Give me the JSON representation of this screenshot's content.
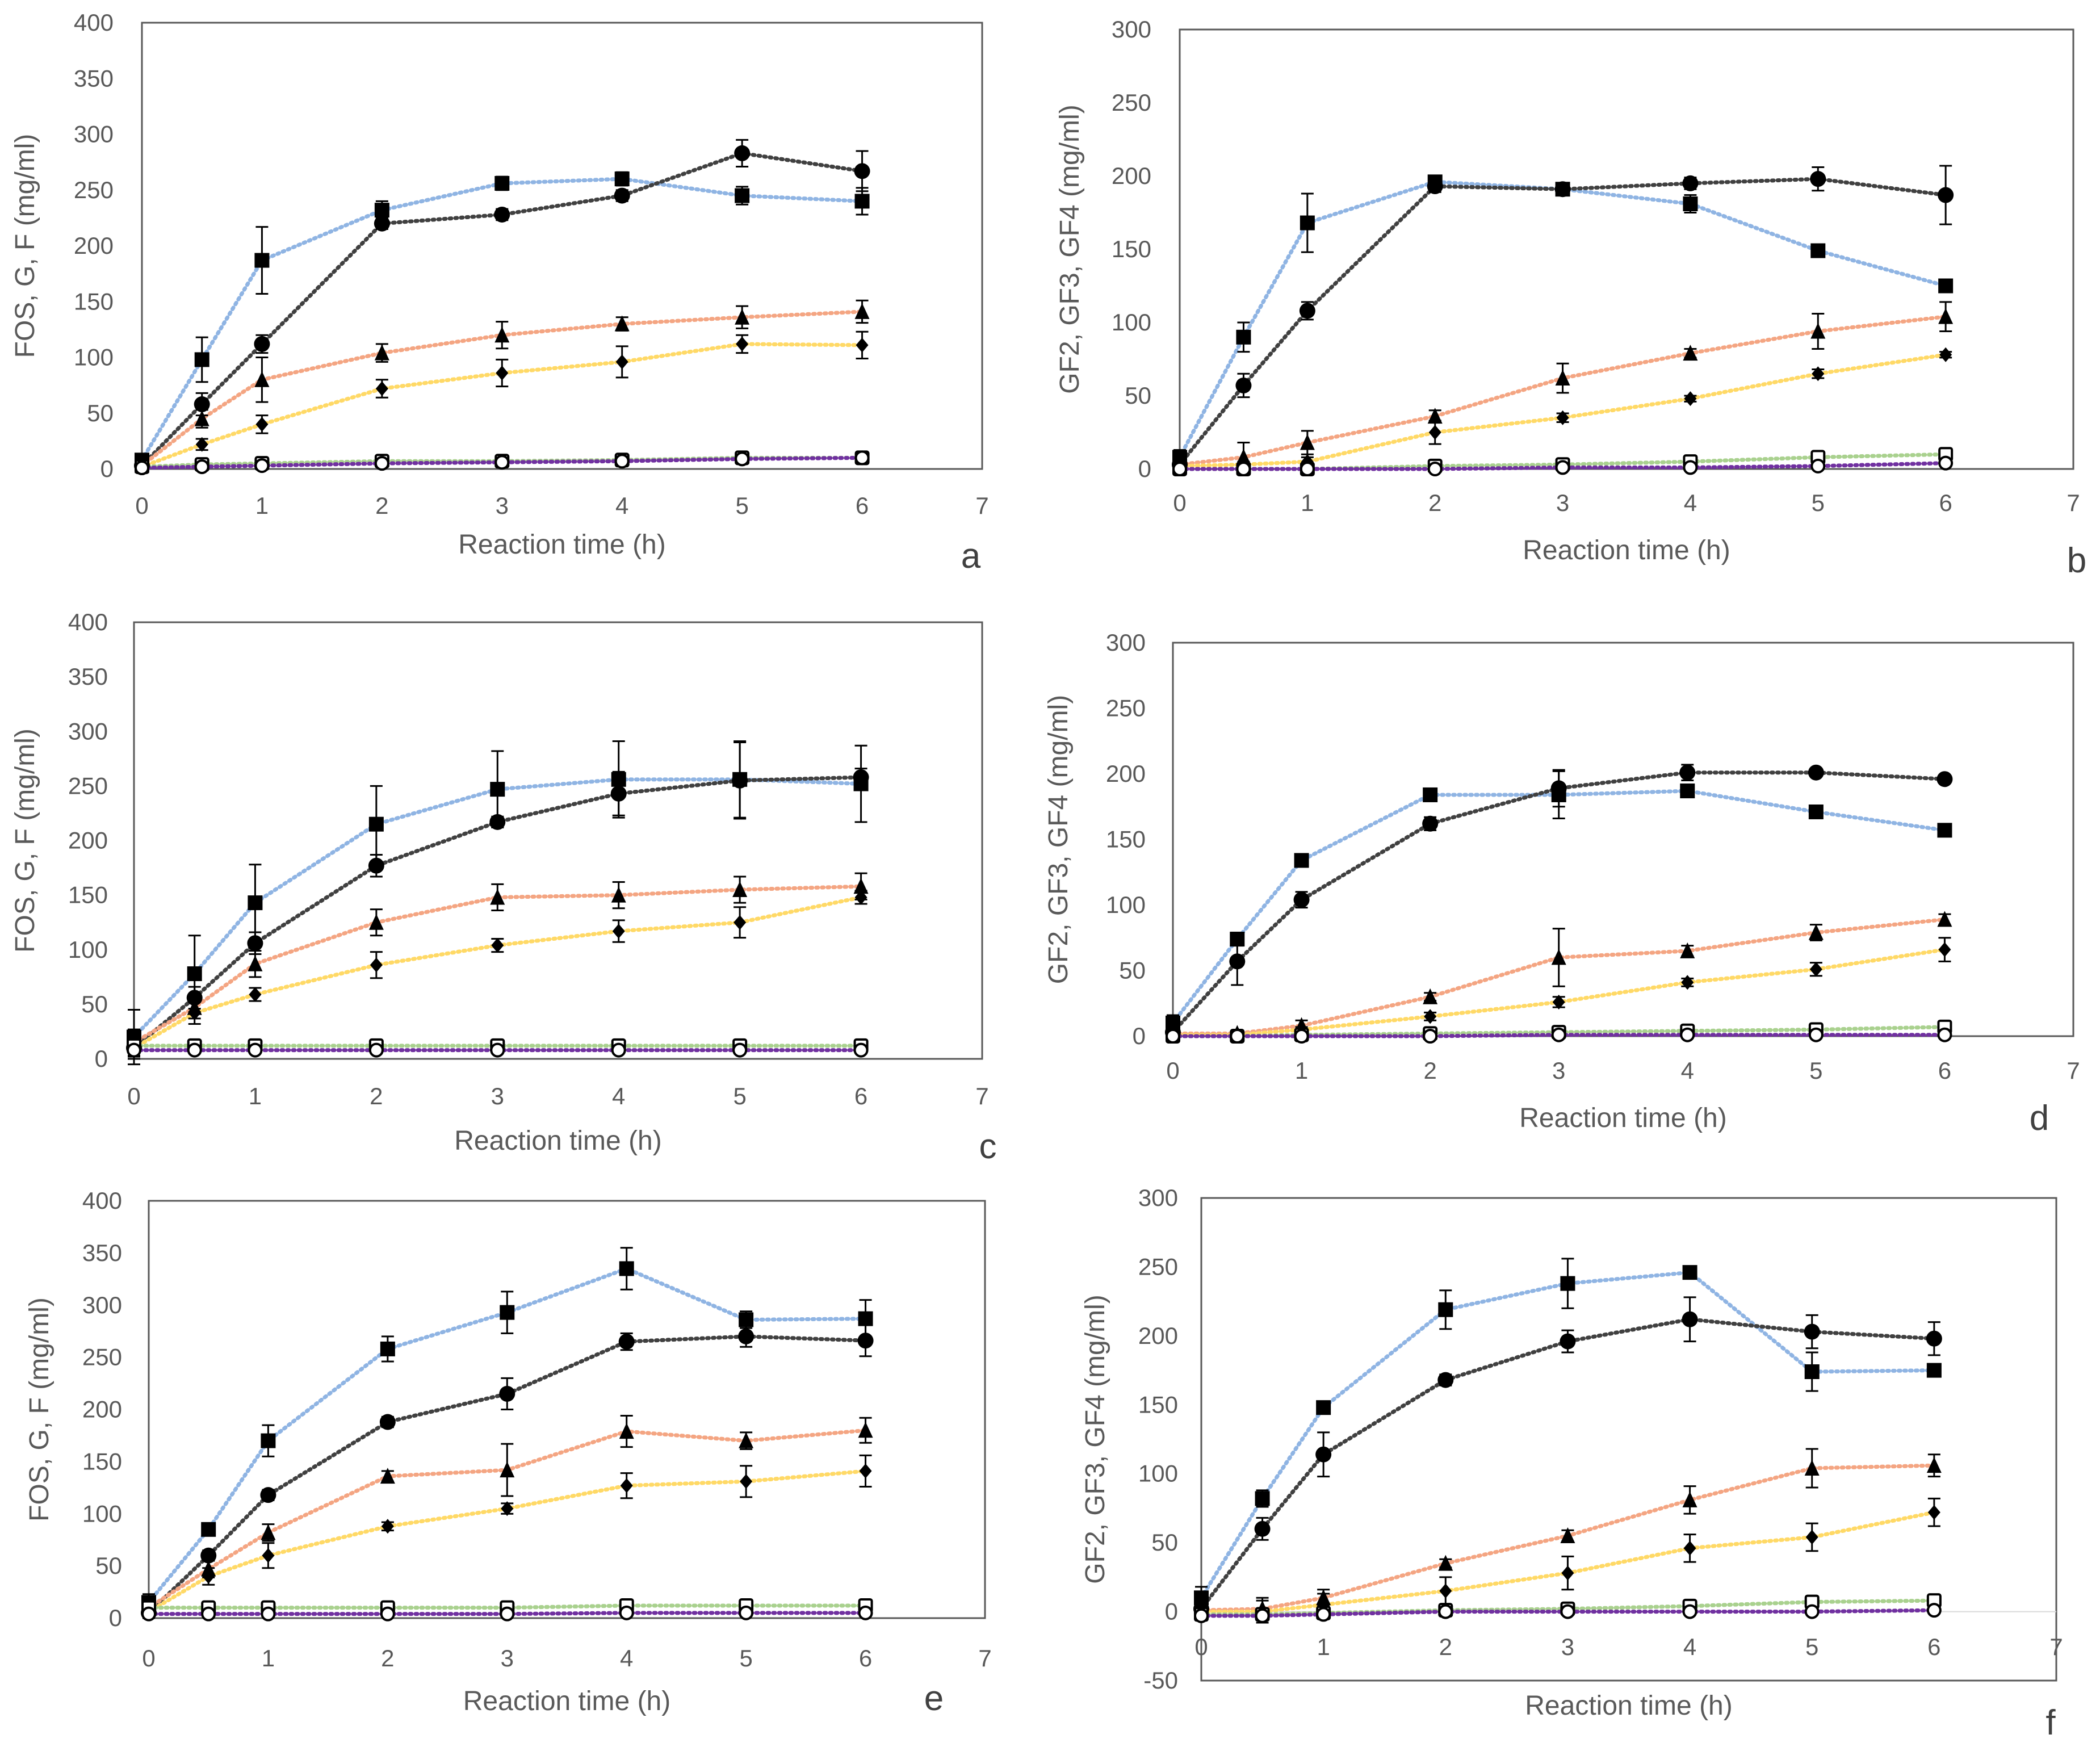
{
  "chart_data": [
    {
      "panel": "a",
      "type": "line",
      "xlabel": "Reaction time  (h)",
      "ylabel": "FOS, G, F (mg/ml)",
      "xlim": [
        0,
        7
      ],
      "ylim": [
        0,
        400
      ],
      "xticks": [
        0,
        1,
        2,
        3,
        4,
        5,
        6,
        7
      ],
      "yticks": [
        0,
        50,
        100,
        150,
        200,
        250,
        300,
        350,
        400
      ],
      "x": [
        0,
        0.5,
        1,
        2,
        3,
        4,
        5,
        6
      ],
      "series": [
        {
          "marker": "square",
          "color": "#8fb4e3",
          "values": [
            8,
            98,
            187,
            232,
            256,
            260,
            245,
            240
          ],
          "errors": [
            5,
            20,
            30,
            8,
            6,
            6,
            8,
            12
          ]
        },
        {
          "marker": "circle",
          "color": "#404040",
          "values": [
            3,
            58,
            112,
            220,
            228,
            245,
            283,
            267
          ],
          "errors": [
            3,
            10,
            8,
            5,
            5,
            5,
            12,
            18
          ]
        },
        {
          "marker": "triangle",
          "color": "#f4a582",
          "values": [
            3,
            45,
            80,
            104,
            120,
            130,
            136,
            141
          ],
          "errors": [
            3,
            8,
            20,
            8,
            12,
            6,
            10,
            10
          ]
        },
        {
          "marker": "diamond",
          "color": "#ffd966",
          "values": [
            2,
            22,
            40,
            72,
            86,
            96,
            112,
            111
          ],
          "errors": [
            2,
            5,
            8,
            8,
            12,
            14,
            8,
            12
          ]
        },
        {
          "marker": "open-square",
          "color": "#a9d18e",
          "values": [
            2,
            4,
            5,
            7,
            7,
            8,
            10,
            10
          ],
          "errors": [
            0,
            0,
            0,
            0,
            0,
            0,
            0,
            0
          ]
        },
        {
          "marker": "open-circle",
          "color": "#7030a0",
          "values": [
            1,
            2,
            3,
            5,
            6,
            7,
            9,
            10
          ],
          "errors": [
            0,
            0,
            0,
            0,
            0,
            0,
            0,
            0
          ]
        }
      ]
    },
    {
      "panel": "b",
      "type": "line",
      "xlabel": "Reaction time (h)",
      "ylabel": "GF2, GF3, GF4 (mg/ml)",
      "xlim": [
        0,
        7
      ],
      "ylim": [
        0,
        300
      ],
      "xticks": [
        0,
        1,
        2,
        3,
        4,
        5,
        6,
        7
      ],
      "yticks": [
        0,
        50,
        100,
        150,
        200,
        250,
        300
      ],
      "x": [
        0,
        0.5,
        1,
        2,
        3,
        4,
        5,
        6
      ],
      "series": [
        {
          "marker": "square",
          "color": "#8fb4e3",
          "values": [
            8,
            90,
            168,
            196,
            191,
            181,
            149,
            125
          ],
          "errors": [
            5,
            10,
            20,
            4,
            4,
            6,
            3,
            4
          ]
        },
        {
          "marker": "circle",
          "color": "#404040",
          "values": [
            3,
            57,
            108,
            193,
            191,
            195,
            198,
            187
          ],
          "errors": [
            3,
            8,
            6,
            4,
            4,
            4,
            8,
            20
          ]
        },
        {
          "marker": "triangle",
          "color": "#f4a582",
          "values": [
            3,
            8,
            18,
            36,
            62,
            79,
            94,
            104
          ],
          "errors": [
            3,
            10,
            8,
            4,
            10,
            3,
            12,
            10
          ]
        },
        {
          "marker": "diamond",
          "color": "#ffd966",
          "values": [
            2,
            3,
            5,
            25,
            35,
            48,
            65,
            78
          ],
          "errors": [
            2,
            2,
            3,
            8,
            3,
            2,
            3,
            2
          ]
        },
        {
          "marker": "open-square",
          "color": "#a9d18e",
          "values": [
            0,
            0,
            0,
            2,
            3,
            5,
            8,
            10
          ],
          "errors": [
            0,
            0,
            0,
            0,
            0,
            0,
            0,
            0
          ]
        },
        {
          "marker": "open-circle",
          "color": "#7030a0",
          "values": [
            0,
            0,
            0,
            0,
            1,
            1,
            2,
            4
          ],
          "errors": [
            0,
            0,
            0,
            0,
            0,
            0,
            0,
            0
          ]
        }
      ]
    },
    {
      "panel": "c",
      "type": "line",
      "xlabel": "Reaction time (h)",
      "ylabel": "FOS, G, F (mg/ml)",
      "xlim": [
        0,
        7
      ],
      "ylim": [
        0,
        400
      ],
      "xticks": [
        0,
        1,
        2,
        3,
        4,
        5,
        6,
        7
      ],
      "yticks": [
        0,
        50,
        100,
        150,
        200,
        250,
        300,
        350,
        400
      ],
      "x": [
        0,
        0.5,
        1,
        2,
        3,
        4,
        5,
        6
      ],
      "series": [
        {
          "marker": "square",
          "color": "#8fb4e3",
          "values": [
            20,
            78,
            143,
            215,
            247,
            256,
            256,
            252
          ],
          "errors": [
            25,
            35,
            35,
            35,
            35,
            35,
            35,
            35
          ]
        },
        {
          "marker": "circle",
          "color": "#404040",
          "values": [
            10,
            56,
            106,
            177,
            217,
            243,
            255,
            258
          ],
          "errors": [
            8,
            10,
            10,
            10,
            5,
            20,
            35,
            8
          ]
        },
        {
          "marker": "triangle",
          "color": "#f4a582",
          "values": [
            15,
            47,
            87,
            125,
            148,
            150,
            155,
            158
          ],
          "errors": [
            12,
            10,
            12,
            12,
            12,
            12,
            12,
            12
          ]
        },
        {
          "marker": "diamond",
          "color": "#ffd966",
          "values": [
            10,
            42,
            59,
            86,
            104,
            117,
            125,
            148
          ],
          "errors": [
            10,
            10,
            6,
            12,
            6,
            10,
            14,
            6
          ]
        },
        {
          "marker": "open-square",
          "color": "#a9d18e",
          "values": [
            12,
            12,
            12,
            12,
            12,
            12,
            12,
            12
          ],
          "errors": [
            0,
            0,
            0,
            0,
            0,
            0,
            0,
            0
          ]
        },
        {
          "marker": "open-circle",
          "color": "#7030a0",
          "values": [
            8,
            8,
            8,
            8,
            8,
            8,
            8,
            8
          ],
          "errors": [
            0,
            0,
            0,
            0,
            0,
            0,
            0,
            0
          ]
        }
      ]
    },
    {
      "panel": "d",
      "type": "line",
      "xlabel": "Reaction time (h)",
      "ylabel": "GF2, GF3, GF4 (mg/ml)",
      "xlim": [
        0,
        7
      ],
      "ylim": [
        0,
        300
      ],
      "xticks": [
        0,
        1,
        2,
        3,
        4,
        5,
        6,
        7
      ],
      "yticks": [
        0,
        50,
        100,
        150,
        200,
        250,
        300
      ],
      "x": [
        0,
        0.5,
        1,
        2,
        3,
        4,
        5,
        6
      ],
      "series": [
        {
          "marker": "square",
          "color": "#8fb4e3",
          "values": [
            10,
            74,
            134,
            184,
            184,
            187,
            171,
            157
          ],
          "errors": [
            6,
            5,
            4,
            4,
            18,
            4,
            3,
            3
          ]
        },
        {
          "marker": "circle",
          "color": "#404040",
          "values": [
            3,
            57,
            104,
            162,
            189,
            201,
            201,
            196
          ],
          "errors": [
            3,
            18,
            6,
            5,
            14,
            6,
            2,
            2
          ]
        },
        {
          "marker": "triangle",
          "color": "#f4a582",
          "values": [
            2,
            2,
            8,
            30,
            60,
            65,
            79,
            89
          ],
          "errors": [
            2,
            2,
            4,
            3,
            22,
            4,
            6,
            4
          ]
        },
        {
          "marker": "diamond",
          "color": "#ffd966",
          "values": [
            1,
            1,
            5,
            15,
            26,
            41,
            51,
            66
          ],
          "errors": [
            1,
            1,
            2,
            3,
            4,
            3,
            5,
            9
          ]
        },
        {
          "marker": "open-square",
          "color": "#a9d18e",
          "values": [
            0,
            0,
            1,
            2,
            3,
            4,
            5,
            7
          ],
          "errors": [
            0,
            0,
            0,
            0,
            0,
            0,
            0,
            0
          ]
        },
        {
          "marker": "open-circle",
          "color": "#7030a0",
          "values": [
            0,
            0,
            0,
            0,
            1,
            1,
            1,
            1
          ],
          "errors": [
            0,
            0,
            0,
            0,
            0,
            0,
            0,
            0
          ]
        }
      ]
    },
    {
      "panel": "e",
      "type": "line",
      "xlabel": "Reaction time (h)",
      "ylabel": "FOS, G, F (mg/ml)",
      "xlim": [
        0,
        7
      ],
      "ylim": [
        0,
        400
      ],
      "xticks": [
        0,
        1,
        2,
        3,
        4,
        5,
        6,
        7
      ],
      "yticks": [
        0,
        50,
        100,
        150,
        200,
        250,
        300,
        350,
        400
      ],
      "x": [
        0,
        0.5,
        1,
        2,
        3,
        4,
        5,
        6
      ],
      "series": [
        {
          "marker": "square",
          "color": "#8fb4e3",
          "values": [
            15,
            85,
            170,
            258,
            293,
            335,
            286,
            287
          ],
          "errors": [
            8,
            5,
            15,
            12,
            20,
            20,
            8,
            18
          ]
        },
        {
          "marker": "circle",
          "color": "#404040",
          "values": [
            5,
            60,
            118,
            188,
            215,
            265,
            270,
            266
          ],
          "errors": [
            5,
            5,
            5,
            5,
            15,
            8,
            10,
            15
          ]
        },
        {
          "marker": "triangle",
          "color": "#f4a582",
          "values": [
            10,
            47,
            82,
            136,
            142,
            179,
            170,
            180
          ],
          "errors": [
            8,
            8,
            8,
            5,
            25,
            15,
            8,
            12
          ]
        },
        {
          "marker": "diamond",
          "color": "#ffd966",
          "values": [
            6,
            40,
            60,
            88,
            105,
            127,
            131,
            141
          ],
          "errors": [
            5,
            8,
            12,
            4,
            5,
            12,
            15,
            15
          ]
        },
        {
          "marker": "open-square",
          "color": "#a9d18e",
          "values": [
            10,
            10,
            10,
            10,
            10,
            12,
            12,
            12
          ],
          "errors": [
            0,
            0,
            0,
            0,
            0,
            0,
            0,
            0
          ]
        },
        {
          "marker": "open-circle",
          "color": "#7030a0",
          "values": [
            4,
            4,
            4,
            4,
            4,
            5,
            5,
            5
          ],
          "errors": [
            0,
            0,
            0,
            0,
            0,
            0,
            0,
            0
          ]
        }
      ]
    },
    {
      "panel": "f",
      "type": "line",
      "xlabel": "Reaction time (h)",
      "ylabel": "GF2, GF3, GF4 (mg/ml)",
      "xlim": [
        0,
        7
      ],
      "ylim": [
        -50,
        300
      ],
      "xticks": [
        0,
        1,
        2,
        3,
        4,
        5,
        6,
        7
      ],
      "yticks": [
        -50,
        0,
        50,
        100,
        150,
        200,
        250,
        300
      ],
      "x": [
        0,
        0.5,
        1,
        2,
        3,
        4,
        5,
        6
      ],
      "series": [
        {
          "marker": "square",
          "color": "#8fb4e3",
          "values": [
            10,
            82,
            148,
            219,
            238,
            246,
            174,
            175
          ],
          "errors": [
            8,
            6,
            4,
            14,
            18,
            4,
            14,
            4
          ]
        },
        {
          "marker": "circle",
          "color": "#404040",
          "values": [
            2,
            60,
            114,
            168,
            196,
            212,
            203,
            198
          ],
          "errors": [
            3,
            8,
            16,
            4,
            8,
            16,
            12,
            12
          ]
        },
        {
          "marker": "triangle",
          "color": "#f4a582",
          "values": [
            1,
            2,
            10,
            35,
            55,
            81,
            104,
            106
          ],
          "errors": [
            2,
            8,
            6,
            3,
            4,
            10,
            14,
            8
          ]
        },
        {
          "marker": "diamond",
          "color": "#ffd966",
          "values": [
            0,
            0,
            5,
            15,
            28,
            46,
            54,
            72
          ],
          "errors": [
            2,
            8,
            8,
            10,
            12,
            10,
            10,
            10
          ]
        },
        {
          "marker": "open-square",
          "color": "#a9d18e",
          "values": [
            -2,
            -2,
            -1,
            1,
            2,
            4,
            7,
            8
          ],
          "errors": [
            0,
            0,
            0,
            0,
            0,
            0,
            0,
            0
          ]
        },
        {
          "marker": "open-circle",
          "color": "#7030a0",
          "values": [
            -3,
            -3,
            -2,
            0,
            0,
            0,
            0,
            1
          ],
          "errors": [
            0,
            0,
            0,
            0,
            0,
            0,
            0,
            0
          ]
        }
      ]
    }
  ]
}
